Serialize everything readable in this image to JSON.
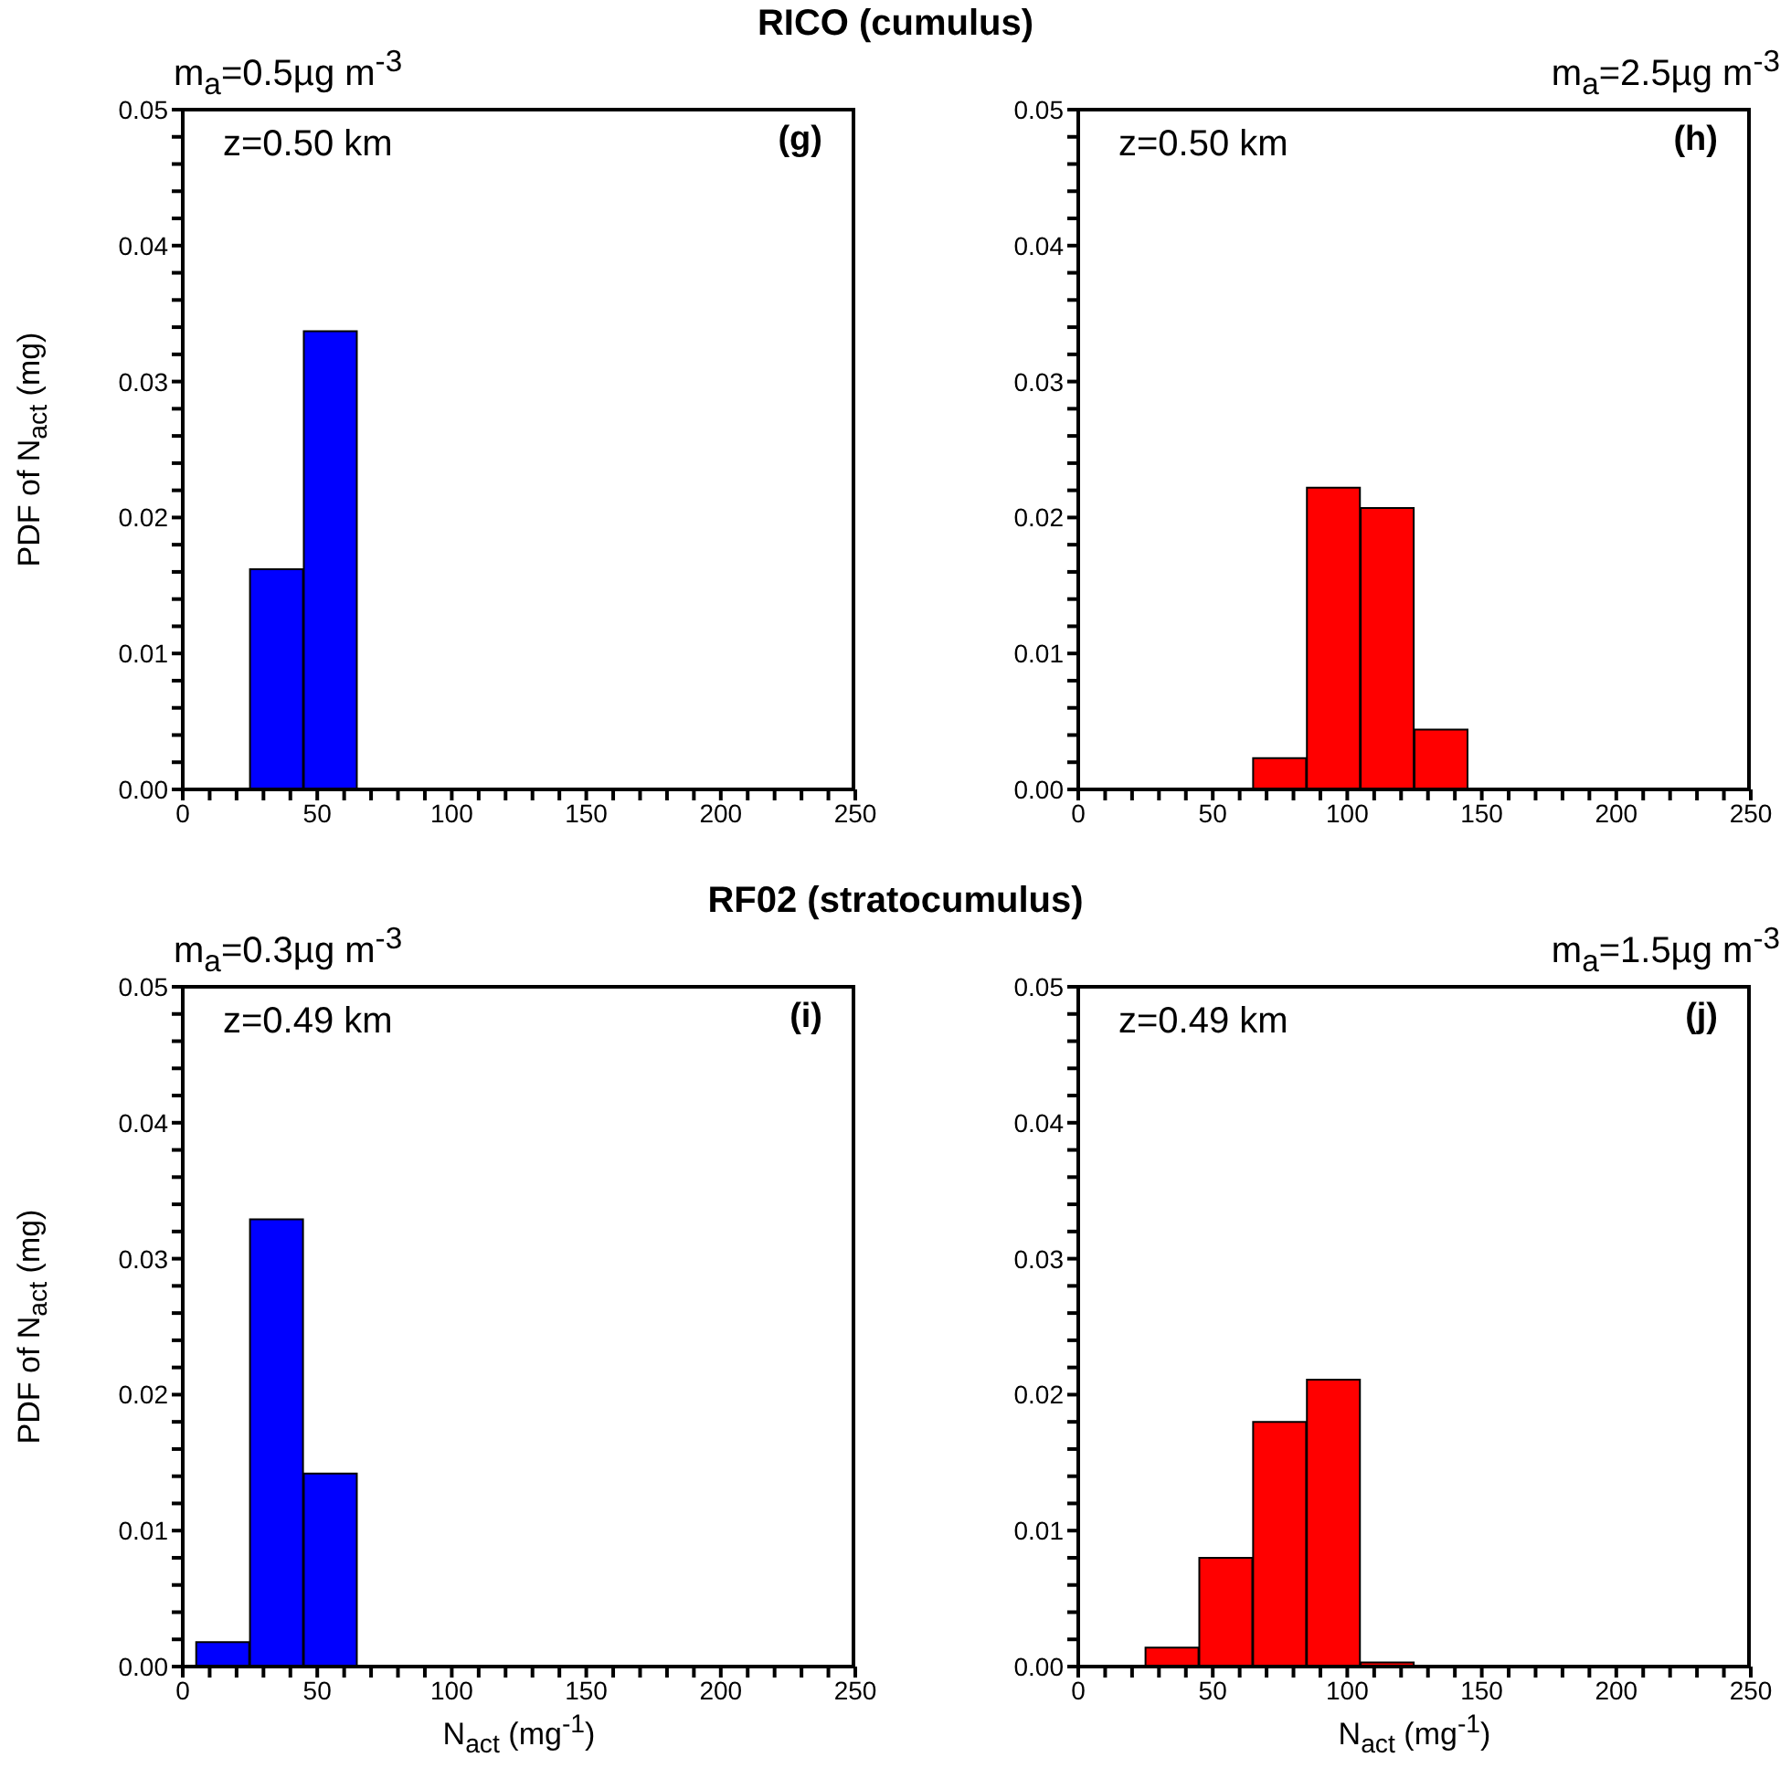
{
  "chart_data": [
    {
      "type": "histogram",
      "title": "RICO (cumulus)",
      "subtitle": "m$_{a}$=0.5µg m$^{-3}$",
      "ylabel": "PDF of N$_{act}$ (mg)",
      "annotations": [
        "z=0.50 km",
        "(g)"
      ],
      "color": "#0000ff",
      "bins": [
        5,
        25,
        45,
        65,
        85,
        105,
        125,
        145,
        165,
        185,
        205,
        225,
        245
      ],
      "values": [
        0,
        0.0162,
        0.0337,
        0,
        0,
        0,
        0,
        0,
        0,
        0,
        0,
        0
      ],
      "xlim": [
        0,
        250
      ],
      "xticks": [
        0,
        {
          "value": 10,
          "label": null
        },
        {
          "value": 20,
          "label": null
        },
        {
          "value": 30,
          "label": null
        },
        {
          "value": 40,
          "label": null
        },
        50,
        {
          "value": 60,
          "label": null
        },
        {
          "value": 70,
          "label": null
        },
        {
          "value": 80,
          "label": null
        },
        {
          "value": 90,
          "label": null
        },
        100,
        {
          "value": 110,
          "label": null
        },
        {
          "value": 120,
          "label": null
        },
        {
          "value": 130,
          "label": null
        },
        {
          "value": 140,
          "label": null
        },
        150,
        {
          "value": 160,
          "label": null
        },
        {
          "value": 170,
          "label": null
        },
        {
          "value": 180,
          "label": null
        },
        {
          "value": 190,
          "label": null
        },
        200,
        {
          "value": 210,
          "label": null
        },
        {
          "value": 220,
          "label": null
        },
        {
          "value": 230,
          "label": null
        },
        {
          "value": 240,
          "label": null
        },
        250
      ],
      "ylim": [
        0,
        0.05
      ],
      "yticks": [
        {
          "value": 0,
          "label": "0.00"
        },
        {
          "value": 0.002,
          "label": null
        },
        {
          "value": 0.004,
          "label": null
        },
        {
          "value": 0.006,
          "label": null
        },
        {
          "value": 0.008,
          "label": null
        },
        0.01,
        {
          "value": 0.012,
          "label": null
        },
        {
          "value": 0.014,
          "label": null
        },
        {
          "value": 0.016,
          "label": null
        },
        {
          "value": 0.018,
          "label": null
        },
        0.02,
        {
          "value": 0.022,
          "label": null
        },
        {
          "value": 0.024,
          "label": null
        },
        {
          "value": 0.026,
          "label": null
        },
        {
          "value": 0.028,
          "label": null
        },
        0.03,
        {
          "value": 0.032,
          "label": null
        },
        {
          "value": 0.034,
          "label": null
        },
        {
          "value": 0.036,
          "label": null
        },
        {
          "value": 0.038,
          "label": null
        },
        0.04,
        {
          "value": 0.042,
          "label": null
        },
        {
          "value": 0.044,
          "label": null
        },
        {
          "value": 0.046,
          "label": null
        },
        {
          "value": 0.048,
          "label": null
        },
        0.05
      ]
    },
    {
      "type": "histogram",
      "subtitle": "m$_{a}$=2.5µg m$^{-3}$",
      "annotations": [
        "z=0.50 km",
        "(h)"
      ],
      "color": "#ff0000",
      "bins": [
        5,
        25,
        45,
        65,
        85,
        105,
        125,
        145,
        165,
        185,
        205,
        225,
        245
      ],
      "values": [
        0,
        null,
        null,
        0.0023,
        0.0222,
        0.0207,
        0.0044,
        0,
        0,
        0,
        0,
        0
      ],
      "xlim": [
        0,
        250
      ],
      "xticks": [
        0,
        {
          "value": 10,
          "label": null
        },
        {
          "value": 20,
          "label": null
        },
        {
          "value": 30,
          "label": null
        },
        {
          "value": 40,
          "label": null
        },
        50,
        {
          "value": 60,
          "label": null
        },
        {
          "value": 70,
          "label": null
        },
        {
          "value": 80,
          "label": null
        },
        {
          "value": 90,
          "label": null
        },
        100,
        {
          "value": 110,
          "label": null
        },
        {
          "value": 120,
          "label": null
        },
        {
          "value": 130,
          "label": null
        },
        {
          "value": 140,
          "label": null
        },
        150,
        {
          "value": 160,
          "label": null
        },
        {
          "value": 170,
          "label": null
        },
        {
          "value": 180,
          "label": null
        },
        {
          "value": 190,
          "label": null
        },
        200,
        {
          "value": 210,
          "label": null
        },
        {
          "value": 220,
          "label": null
        },
        {
          "value": 230,
          "label": null
        },
        {
          "value": 240,
          "label": null
        },
        250
      ],
      "ylim": [
        0,
        0.05
      ],
      "yticks": [
        {
          "value": 0,
          "label": "0.00"
        },
        {
          "value": 0.002,
          "label": null
        },
        {
          "value": 0.004,
          "label": null
        },
        {
          "value": 0.006,
          "label": null
        },
        {
          "value": 0.008,
          "label": null
        },
        0.01,
        {
          "value": 0.012,
          "label": null
        },
        {
          "value": 0.014,
          "label": null
        },
        {
          "value": 0.016,
          "label": null
        },
        {
          "value": 0.018,
          "label": null
        },
        0.02,
        {
          "value": 0.022,
          "label": null
        },
        {
          "value": 0.024,
          "label": null
        },
        {
          "value": 0.026,
          "label": null
        },
        {
          "value": 0.028,
          "label": null
        },
        0.03,
        {
          "value": 0.032,
          "label": null
        },
        {
          "value": 0.034,
          "label": null
        },
        {
          "value": 0.036,
          "label": null
        },
        {
          "value": 0.038,
          "label": null
        },
        0.04,
        {
          "value": 0.042,
          "label": null
        },
        {
          "value": 0.044,
          "label": null
        },
        {
          "value": 0.046,
          "label": null
        },
        {
          "value": 0.048,
          "label": null
        },
        0.05
      ]
    },
    {
      "type": "histogram",
      "title": "RF02 (stratocumulus)",
      "subtitle": "m$_{a}$=0.3µg m$^{-3}$",
      "xlabel": "N$_{act}$ (mg$^{-1}$)",
      "ylabel": "PDF of N$_{act}$ (mg)",
      "annotations": [
        "z=0.49 km",
        "(i)"
      ],
      "color": "#0000ff",
      "bins": [
        5,
        25,
        45,
        65,
        85,
        105,
        125,
        145,
        165,
        185,
        205,
        225,
        245
      ],
      "values": [
        0.0018,
        0.0329,
        0.0142,
        0,
        0,
        0,
        0,
        0,
        0,
        0,
        0,
        0
      ],
      "xlim": [
        0,
        250
      ],
      "xticks": [
        0,
        {
          "value": 10,
          "label": null
        },
        {
          "value": 20,
          "label": null
        },
        {
          "value": 30,
          "label": null
        },
        {
          "value": 40,
          "label": null
        },
        50,
        {
          "value": 60,
          "label": null
        },
        {
          "value": 70,
          "label": null
        },
        {
          "value": 80,
          "label": null
        },
        {
          "value": 90,
          "label": null
        },
        100,
        {
          "value": 110,
          "label": null
        },
        {
          "value": 120,
          "label": null
        },
        {
          "value": 130,
          "label": null
        },
        {
          "value": 140,
          "label": null
        },
        150,
        {
          "value": 160,
          "label": null
        },
        {
          "value": 170,
          "label": null
        },
        {
          "value": 180,
          "label": null
        },
        {
          "value": 190,
          "label": null
        },
        200,
        {
          "value": 210,
          "label": null
        },
        {
          "value": 220,
          "label": null
        },
        {
          "value": 230,
          "label": null
        },
        {
          "value": 240,
          "label": null
        },
        250
      ],
      "ylim": [
        0,
        0.05
      ],
      "yticks": [
        {
          "value": 0,
          "label": "0.00"
        },
        {
          "value": 0.002,
          "label": null
        },
        {
          "value": 0.004,
          "label": null
        },
        {
          "value": 0.006,
          "label": null
        },
        {
          "value": 0.008,
          "label": null
        },
        0.01,
        {
          "value": 0.012,
          "label": null
        },
        {
          "value": 0.014,
          "label": null
        },
        {
          "value": 0.016,
          "label": null
        },
        {
          "value": 0.018,
          "label": null
        },
        0.02,
        {
          "value": 0.022,
          "label": null
        },
        {
          "value": 0.024,
          "label": null
        },
        {
          "value": 0.026,
          "label": null
        },
        {
          "value": 0.028,
          "label": null
        },
        0.03,
        {
          "value": 0.032,
          "label": null
        },
        {
          "value": 0.034,
          "label": null
        },
        {
          "value": 0.036,
          "label": null
        },
        {
          "value": 0.038,
          "label": null
        },
        0.04,
        {
          "value": 0.042,
          "label": null
        },
        {
          "value": 0.044,
          "label": null
        },
        {
          "value": 0.046,
          "label": null
        },
        {
          "value": 0.048,
          "label": null
        },
        0.05
      ]
    },
    {
      "type": "histogram",
      "subtitle": "m$_{a}$=1.5µg m$^{-3}$",
      "xlabel": "N$_{act}$ (mg$^{-1}$)",
      "annotations": [
        "z=0.49 km",
        "(j)"
      ],
      "color": "#ff0000",
      "bins": [
        5,
        25,
        45,
        65,
        85,
        105,
        125,
        145,
        165,
        185,
        205,
        225,
        245
      ],
      "values": [
        0,
        0.0014,
        0.008,
        0.018,
        0.0211,
        0.0003,
        0,
        0,
        0,
        0,
        0,
        0
      ],
      "xlim": [
        0,
        250
      ],
      "xticks": [
        0,
        {
          "value": 10,
          "label": null
        },
        {
          "value": 20,
          "label": null
        },
        {
          "value": 30,
          "label": null
        },
        {
          "value": 40,
          "label": null
        },
        50,
        {
          "value": 60,
          "label": null
        },
        {
          "value": 70,
          "label": null
        },
        {
          "value": 80,
          "label": null
        },
        {
          "value": 90,
          "label": null
        },
        100,
        {
          "value": 110,
          "label": null
        },
        {
          "value": 120,
          "label": null
        },
        {
          "value": 130,
          "label": null
        },
        {
          "value": 140,
          "label": null
        },
        150,
        {
          "value": 160,
          "label": null
        },
        {
          "value": 170,
          "label": null
        },
        {
          "value": 180,
          "label": null
        },
        {
          "value": 190,
          "label": null
        },
        200,
        {
          "value": 210,
          "label": null
        },
        {
          "value": 220,
          "label": null
        },
        {
          "value": 230,
          "label": null
        },
        {
          "value": 240,
          "label": null
        },
        250
      ],
      "ylim": [
        0,
        0.05
      ],
      "yticks": [
        {
          "value": 0,
          "label": "0.00"
        },
        {
          "value": 0.002,
          "label": null
        },
        {
          "value": 0.004,
          "label": null
        },
        {
          "value": 0.006,
          "label": null
        },
        {
          "value": 0.008,
          "label": null
        },
        0.01,
        {
          "value": 0.012,
          "label": null
        },
        {
          "value": 0.014,
          "label": null
        },
        {
          "value": 0.016,
          "label": null
        },
        {
          "value": 0.018,
          "label": null
        },
        0.02,
        {
          "value": 0.022,
          "label": null
        },
        {
          "value": 0.024,
          "label": null
        },
        {
          "value": 0.026,
          "label": null
        },
        {
          "value": 0.028,
          "label": null
        },
        0.03,
        {
          "value": 0.032,
          "label": null
        },
        {
          "value": 0.034,
          "label": null
        },
        {
          "value": 0.036,
          "label": null
        },
        {
          "value": 0.038,
          "label": null
        },
        0.04,
        {
          "value": 0.042,
          "label": null
        },
        {
          "value": 0.044,
          "label": null
        },
        {
          "value": 0.046,
          "label": null
        },
        {
          "value": 0.048,
          "label": null
        },
        0.05
      ]
    }
  ]
}
